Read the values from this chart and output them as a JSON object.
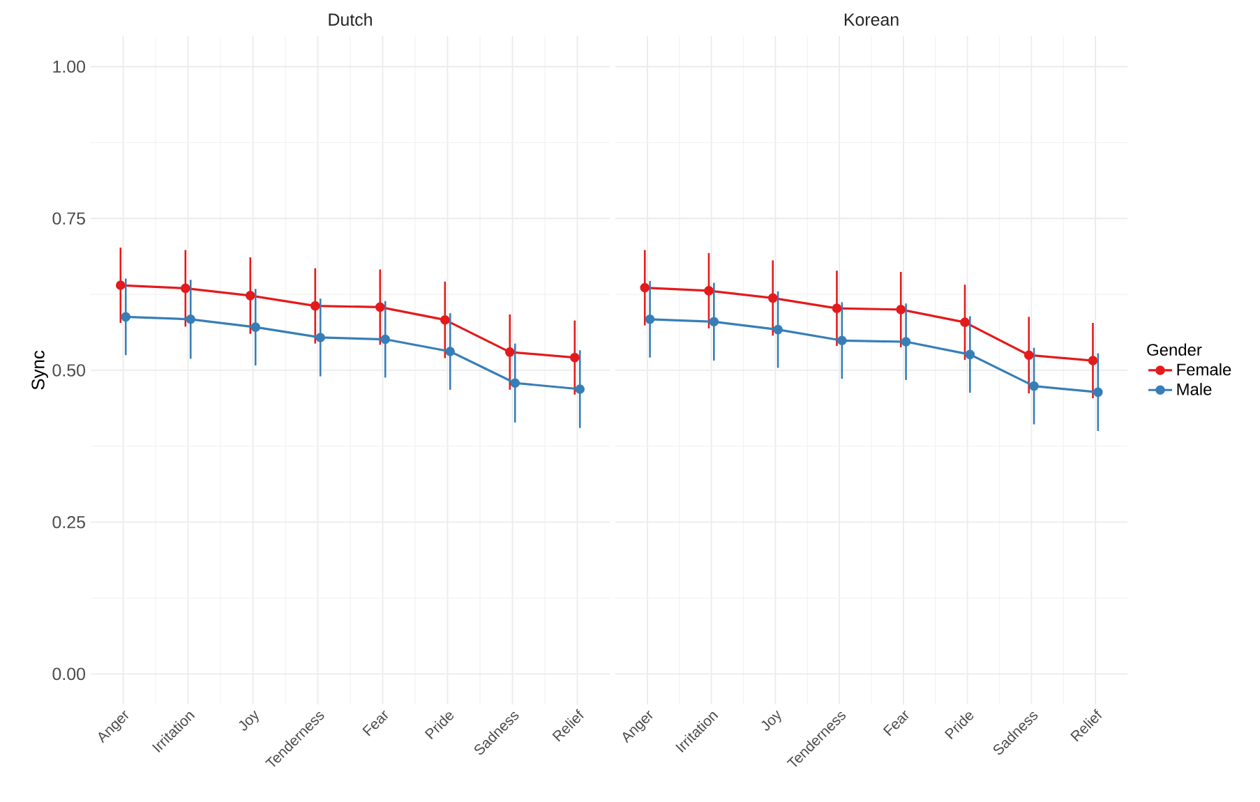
{
  "chart_data": [
    {
      "type": "line",
      "title": "Dutch",
      "ylabel": "Sync",
      "categories": [
        "Anger",
        "Irritation",
        "Joy",
        "Tenderness",
        "Fear",
        "Pride",
        "Sadness",
        "Relief"
      ],
      "series": [
        {
          "color": "#e41a1c",
          "values": [
            0.64,
            0.635,
            0.623,
            0.606,
            0.604,
            0.583,
            0.53,
            0.521
          ],
          "errors": [
            0.062,
            0.063,
            0.063,
            0.062,
            0.062,
            0.063,
            0.062,
            0.061
          ]
        },
        {
          "color": "#377eb8",
          "values": [
            0.588,
            0.584,
            0.571,
            0.554,
            0.551,
            0.531,
            0.479,
            0.469
          ],
          "errors": [
            0.063,
            0.065,
            0.063,
            0.064,
            0.063,
            0.063,
            0.065,
            0.064
          ]
        }
      ],
      "ylim": [
        -0.05,
        1.05
      ],
      "yticks": [
        {
          "value": 0,
          "label": "0.00"
        },
        {
          "value": 0.25,
          "label": "0.25"
        },
        {
          "value": 0.5,
          "label": "0.50"
        },
        {
          "value": 0.75,
          "label": "0.75"
        },
        {
          "value": 1,
          "label": "1.00"
        }
      ],
      "grid": true,
      "marker": "circle",
      "line_style": "solid"
    },
    {
      "type": "line",
      "title": "Korean",
      "legend_title": "Gender",
      "categories": [
        "Anger",
        "Irritation",
        "Joy",
        "Tenderness",
        "Fear",
        "Pride",
        "Sadness",
        "Relief"
      ],
      "series": [
        {
          "name": "Female",
          "color": "#e41a1c",
          "values": [
            0.636,
            0.631,
            0.619,
            0.602,
            0.6,
            0.579,
            0.525,
            0.516
          ],
          "errors": [
            0.062,
            0.062,
            0.062,
            0.062,
            0.062,
            0.062,
            0.063,
            0.062
          ]
        },
        {
          "name": "Male",
          "color": "#377eb8",
          "values": [
            0.584,
            0.58,
            0.567,
            0.549,
            0.547,
            0.526,
            0.474,
            0.464
          ],
          "errors": [
            0.063,
            0.064,
            0.063,
            0.063,
            0.063,
            0.063,
            0.063,
            0.064
          ]
        }
      ],
      "ylim": [
        -0.05,
        1.05
      ],
      "yticks": [
        0,
        0.25,
        0.5,
        0.75,
        1
      ],
      "grid": true,
      "marker": "circle",
      "line_style": "solid",
      "legend": "right",
      "tick_labels": "x"
    }
  ]
}
